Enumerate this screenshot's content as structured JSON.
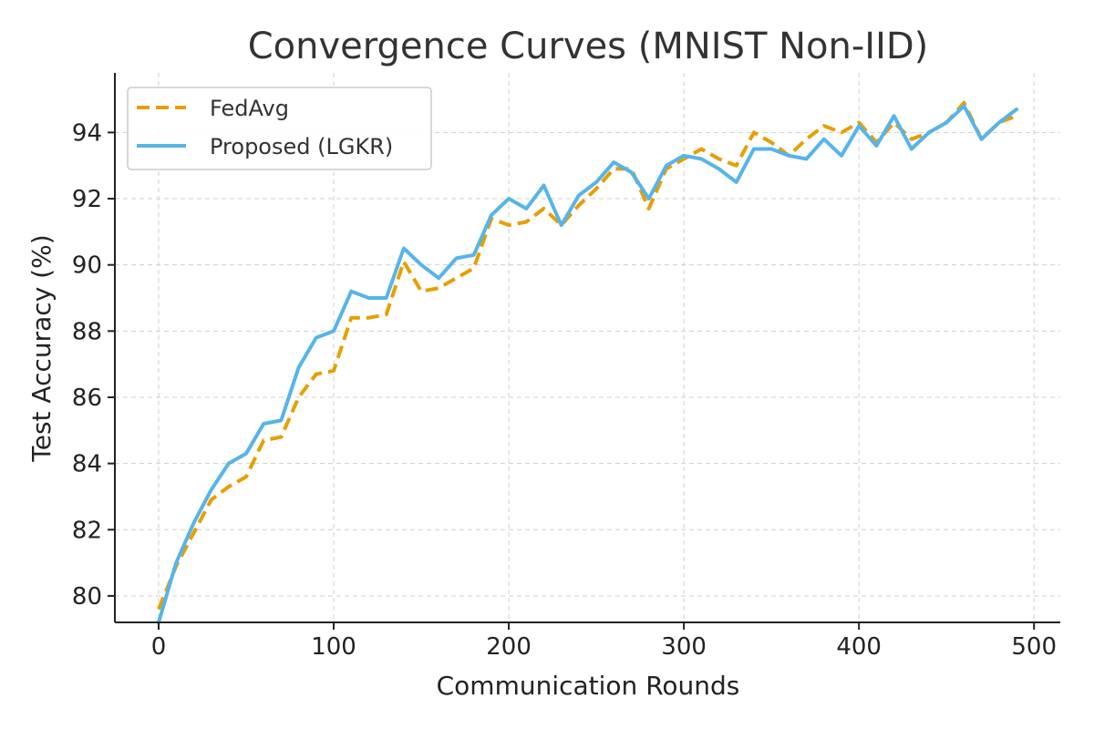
{
  "chart_data": {
    "type": "line",
    "title": "Convergence Curves (MNIST Non-IID)",
    "xlabel": "Communication Rounds",
    "ylabel": "Test Accuracy (%)",
    "xlim": [
      -25,
      515
    ],
    "ylim": [
      79.2,
      95.8
    ],
    "xticks": [
      0,
      100,
      200,
      300,
      400,
      500
    ],
    "yticks": [
      80,
      82,
      84,
      86,
      88,
      90,
      92,
      94
    ],
    "grid": true,
    "legend_position": "upper-left",
    "x": [
      0,
      10,
      20,
      30,
      40,
      50,
      60,
      70,
      80,
      90,
      100,
      110,
      120,
      130,
      140,
      150,
      160,
      170,
      180,
      190,
      200,
      210,
      220,
      230,
      240,
      250,
      260,
      270,
      280,
      290,
      300,
      310,
      320,
      330,
      340,
      350,
      360,
      370,
      380,
      390,
      400,
      410,
      420,
      430,
      440,
      450,
      460,
      470,
      480,
      490
    ],
    "series": [
      {
        "name": "FedAvg",
        "color": "#E69F00",
        "style": "dashed",
        "values": [
          79.6,
          80.9,
          81.9,
          82.9,
          83.3,
          83.6,
          84.7,
          84.8,
          86.0,
          86.7,
          86.8,
          88.4,
          88.4,
          88.5,
          90.1,
          89.2,
          89.3,
          89.6,
          89.9,
          91.4,
          91.2,
          91.3,
          91.7,
          91.2,
          91.8,
          92.3,
          92.9,
          92.9,
          91.7,
          92.9,
          93.2,
          93.5,
          93.2,
          93.0,
          94.0,
          93.7,
          93.3,
          93.8,
          94.2,
          94.0,
          94.3,
          93.7,
          94.3,
          93.8,
          94.0,
          94.3,
          94.9,
          93.8,
          94.3,
          94.5
        ]
      },
      {
        "name": "Proposed (LGKR)",
        "color": "#56B4E9",
        "style": "solid",
        "values": [
          79.2,
          81.0,
          82.2,
          83.2,
          84.0,
          84.3,
          85.2,
          85.3,
          86.9,
          87.8,
          88.0,
          89.2,
          89.0,
          89.0,
          90.5,
          90.0,
          89.6,
          90.2,
          90.3,
          91.5,
          92.0,
          91.7,
          92.4,
          91.2,
          92.1,
          92.5,
          93.1,
          92.8,
          92.0,
          93.0,
          93.3,
          93.2,
          92.9,
          92.5,
          93.5,
          93.5,
          93.3,
          93.2,
          93.8,
          93.3,
          94.2,
          93.6,
          94.5,
          93.5,
          94.0,
          94.3,
          94.8,
          93.8,
          94.3,
          94.7
        ]
      }
    ]
  }
}
